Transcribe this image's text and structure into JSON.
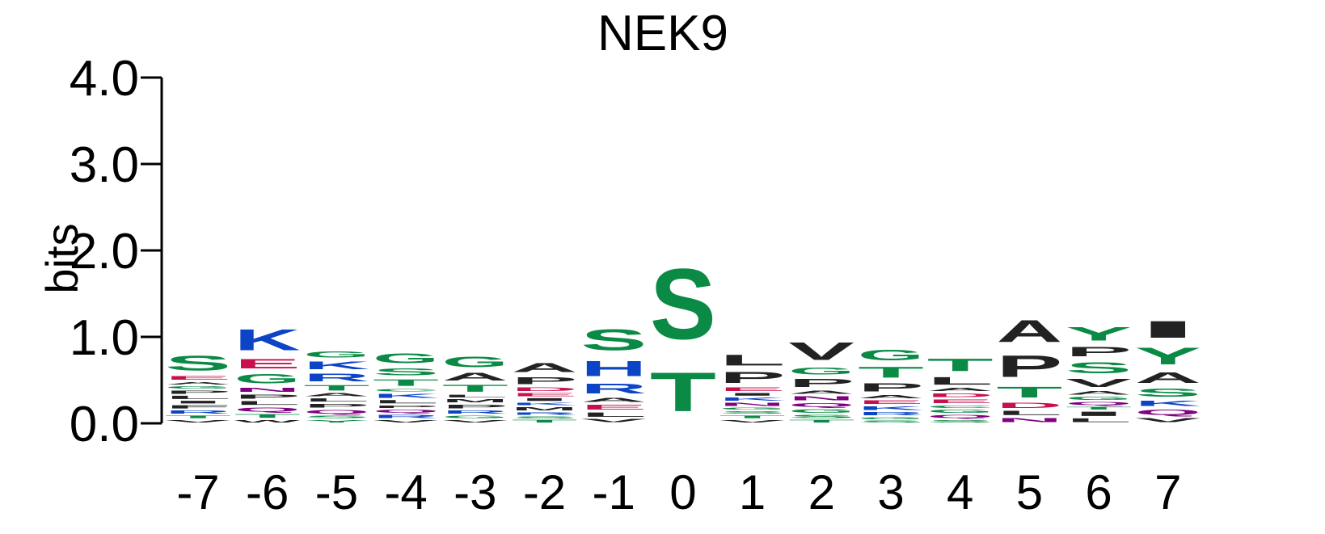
{
  "chart_data": {
    "type": "sequence-logo",
    "title": "NEK9",
    "ylabel": "bits",
    "ylim": [
      0,
      4
    ],
    "yticks": [
      "0.0",
      "1.0",
      "2.0",
      "3.0",
      "4.0"
    ],
    "colors": {
      "polar": "#0a8a45",
      "basic": "#0b45c6",
      "acidic": "#c8104f",
      "amide": "#800080",
      "hydrophobic": "#222222"
    },
    "positions": [
      {
        "label": "-7",
        "letters": [
          {
            "aa": "V",
            "bits": 0.05
          },
          {
            "aa": "T",
            "bits": 0.05
          },
          {
            "aa": "R",
            "bits": 0.06
          },
          {
            "aa": "F",
            "bits": 0.06
          },
          {
            "aa": "I",
            "bits": 0.05
          },
          {
            "aa": "L",
            "bits": 0.06
          },
          {
            "aa": "P",
            "bits": 0.06
          },
          {
            "aa": "G",
            "bits": 0.05
          },
          {
            "aa": "A",
            "bits": 0.05
          },
          {
            "aa": "E",
            "bits": 0.07
          },
          {
            "aa": "S",
            "bits": 0.27
          }
        ]
      },
      {
        "label": "-6",
        "letters": [
          {
            "aa": "W",
            "bits": 0.05
          },
          {
            "aa": "T",
            "bits": 0.07
          },
          {
            "aa": "Q",
            "bits": 0.08
          },
          {
            "aa": "L",
            "bits": 0.07
          },
          {
            "aa": "P",
            "bits": 0.08
          },
          {
            "aa": "N",
            "bits": 0.08
          },
          {
            "aa": "G",
            "bits": 0.17
          },
          {
            "aa": "E",
            "bits": 0.17
          },
          {
            "aa": "K",
            "bits": 0.39
          }
        ]
      },
      {
        "label": "-5",
        "letters": [
          {
            "aa": "Y",
            "bits": 0.05
          },
          {
            "aa": "S",
            "bits": 0.05
          },
          {
            "aa": "Q",
            "bits": 0.07
          },
          {
            "aa": "P",
            "bits": 0.07
          },
          {
            "aa": "L",
            "bits": 0.06
          },
          {
            "aa": "A",
            "bits": 0.06
          },
          {
            "aa": "T",
            "bits": 0.1
          },
          {
            "aa": "R",
            "bits": 0.14
          },
          {
            "aa": "K",
            "bits": 0.14
          },
          {
            "aa": "G",
            "bits": 0.12
          }
        ]
      },
      {
        "label": "-4",
        "letters": [
          {
            "aa": "V",
            "bits": 0.05
          },
          {
            "aa": "R",
            "bits": 0.06
          },
          {
            "aa": "Q",
            "bits": 0.06
          },
          {
            "aa": "P",
            "bits": 0.05
          },
          {
            "aa": "L",
            "bits": 0.06
          },
          {
            "aa": "K",
            "bits": 0.08
          },
          {
            "aa": "C",
            "bits": 0.05
          },
          {
            "aa": "T",
            "bits": 0.12
          },
          {
            "aa": "S",
            "bits": 0.13
          },
          {
            "aa": "G",
            "bits": 0.18
          }
        ]
      },
      {
        "label": "-3",
        "letters": [
          {
            "aa": "V",
            "bits": 0.05
          },
          {
            "aa": "G",
            "bits": 0.05
          },
          {
            "aa": "R",
            "bits": 0.06
          },
          {
            "aa": "P",
            "bits": 0.07
          },
          {
            "aa": "M",
            "bits": 0.06
          },
          {
            "aa": "L",
            "bits": 0.05
          },
          {
            "aa": "T",
            "bits": 0.13
          },
          {
            "aa": "A",
            "bits": 0.14
          },
          {
            "aa": "G",
            "bits": 0.19
          }
        ]
      },
      {
        "label": "-2",
        "letters": [
          {
            "aa": "T",
            "bits": 0.05
          },
          {
            "aa": "S",
            "bits": 0.04
          },
          {
            "aa": "R",
            "bits": 0.05
          },
          {
            "aa": "M",
            "bits": 0.06
          },
          {
            "aa": "K",
            "bits": 0.05
          },
          {
            "aa": "I",
            "bits": 0.05
          },
          {
            "aa": "E",
            "bits": 0.06
          },
          {
            "aa": "D",
            "bits": 0.07
          },
          {
            "aa": "P",
            "bits": 0.13
          },
          {
            "aa": "A",
            "bits": 0.16
          }
        ]
      },
      {
        "label": "-1",
        "letters": [
          {
            "aa": "V",
            "bits": 0.06
          },
          {
            "aa": "L",
            "bits": 0.08
          },
          {
            "aa": "E",
            "bits": 0.09
          },
          {
            "aa": "A",
            "bits": 0.08
          },
          {
            "aa": "R",
            "bits": 0.18
          },
          {
            "aa": "H",
            "bits": 0.28
          },
          {
            "aa": "S",
            "bits": 0.39
          }
        ]
      },
      {
        "label": "0",
        "letters": [
          {
            "aa": "T",
            "bits": 0.72
          },
          {
            "aa": "S",
            "bits": 1.3
          }
        ]
      },
      {
        "label": "1",
        "letters": [
          {
            "aa": "V",
            "bits": 0.05
          },
          {
            "aa": "T",
            "bits": 0.05
          },
          {
            "aa": "S",
            "bits": 0.05
          },
          {
            "aa": "G",
            "bits": 0.04
          },
          {
            "aa": "N",
            "bits": 0.06
          },
          {
            "aa": "K",
            "bits": 0.06
          },
          {
            "aa": "I",
            "bits": 0.05
          },
          {
            "aa": "E",
            "bits": 0.07
          },
          {
            "aa": "P",
            "bits": 0.2
          },
          {
            "aa": "L",
            "bits": 0.2
          }
        ]
      },
      {
        "label": "2",
        "letters": [
          {
            "aa": "T",
            "bits": 0.05
          },
          {
            "aa": "S",
            "bits": 0.06
          },
          {
            "aa": "G",
            "bits": 0.07
          },
          {
            "aa": "Q",
            "bits": 0.07
          },
          {
            "aa": "N",
            "bits": 0.08
          },
          {
            "aa": "A",
            "bits": 0.06
          },
          {
            "aa": "P",
            "bits": 0.15
          },
          {
            "aa": "G",
            "bits": 0.13
          },
          {
            "aa": "V",
            "bits": 0.33
          }
        ]
      },
      {
        "label": "3",
        "letters": [
          {
            "aa": "S",
            "bits": 0.04
          },
          {
            "aa": "G",
            "bits": 0.04
          },
          {
            "aa": "R",
            "bits": 0.06
          },
          {
            "aa": "K",
            "bits": 0.07
          },
          {
            "aa": "E",
            "bits": 0.07
          },
          {
            "aa": "A",
            "bits": 0.06
          },
          {
            "aa": "P",
            "bits": 0.15
          },
          {
            "aa": "T",
            "bits": 0.2
          },
          {
            "aa": "G",
            "bits": 0.19
          }
        ]
      },
      {
        "label": "4",
        "letters": [
          {
            "aa": "S",
            "bits": 0.05
          },
          {
            "aa": "Q",
            "bits": 0.06
          },
          {
            "aa": "G",
            "bits": 0.06
          },
          {
            "aa": "C",
            "bits": 0.05
          },
          {
            "aa": "E",
            "bits": 0.07
          },
          {
            "aa": "D",
            "bits": 0.07
          },
          {
            "aa": "A",
            "bits": 0.06
          },
          {
            "aa": "L",
            "bits": 0.14
          },
          {
            "aa": "T",
            "bits": 0.23
          }
        ]
      },
      {
        "label": "5",
        "letters": [
          {
            "aa": "N",
            "bits": 0.08
          },
          {
            "aa": "L",
            "bits": 0.08
          },
          {
            "aa": "D",
            "bits": 0.1
          },
          {
            "aa": "T",
            "bits": 0.2
          },
          {
            "aa": "P",
            "bits": 0.4
          },
          {
            "aa": "A",
            "bits": 0.41
          }
        ]
      },
      {
        "label": "6",
        "letters": [
          {
            "aa": "L",
            "bits": 0.07
          },
          {
            "aa": "I",
            "bits": 0.08
          },
          {
            "aa": "T",
            "bits": 0.05
          },
          {
            "aa": "Q",
            "bits": 0.06
          },
          {
            "aa": "G",
            "bits": 0.06
          },
          {
            "aa": "A",
            "bits": 0.07
          },
          {
            "aa": "V",
            "bits": 0.15
          },
          {
            "aa": "S",
            "bits": 0.2
          },
          {
            "aa": "P",
            "bits": 0.17
          },
          {
            "aa": "Y",
            "bits": 0.25
          }
        ]
      },
      {
        "label": "7",
        "letters": [
          {
            "aa": "V",
            "bits": 0.08
          },
          {
            "aa": "Q",
            "bits": 0.1
          },
          {
            "aa": "K",
            "bits": 0.1
          },
          {
            "aa": "S",
            "bits": 0.15
          },
          {
            "aa": "A",
            "bits": 0.19
          },
          {
            "aa": "Y",
            "bits": 0.31
          },
          {
            "aa": "I",
            "bits": 0.31
          }
        ]
      }
    ]
  }
}
